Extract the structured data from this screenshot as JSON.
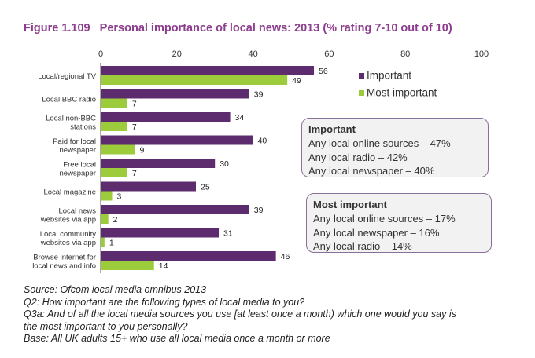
{
  "title": {
    "number": "Figure 1.109",
    "text": "Personal importance of local news: 2013 (% rating 7-10 out of 10)"
  },
  "colors": {
    "important": "#5c2c6e",
    "most_important": "#9ccb3b",
    "title": "#8c3d8e"
  },
  "chart_data": {
    "type": "bar",
    "orientation": "horizontal",
    "xlim": [
      0,
      100
    ],
    "xticks": [
      "0",
      "20",
      "40",
      "60",
      "80",
      "100"
    ],
    "categories": [
      [
        "Local/regional TV"
      ],
      [
        "Local BBC radio"
      ],
      [
        "Local non-BBC",
        "stations"
      ],
      [
        "Paid for local",
        "newspaper"
      ],
      [
        "Free local",
        "newspaper"
      ],
      [
        "Local magazine"
      ],
      [
        "Local news",
        "websites via app"
      ],
      [
        "Local community",
        "websites via app"
      ],
      [
        "Browse internet for",
        "local news and info"
      ]
    ],
    "series": [
      {
        "name": "Important",
        "values": [
          56,
          39,
          34,
          40,
          30,
          25,
          39,
          31,
          46
        ]
      },
      {
        "name": "Most important",
        "values": [
          49,
          7,
          7,
          9,
          7,
          3,
          2,
          1,
          14
        ]
      }
    ],
    "legend_position": "right"
  },
  "boxes": {
    "important": {
      "heading": "Important",
      "lines": [
        "Any local online sources – 47%",
        "Any local radio – 42%",
        "Any local newspaper – 40%"
      ]
    },
    "most_important": {
      "heading": "Most important",
      "lines": [
        "Any local online sources – 17%",
        "Any local newspaper – 16%",
        "Any local radio – 14%"
      ]
    }
  },
  "notes": [
    "Source: Ofcom local media omnibus 2013",
    "Q2: How important are the following types of local media to you?",
    "Q3a: And of all the local media sources you use [at least once a month) which one would you say is",
    "the most important to you personally?",
    "Base: All UK adults 15+ who use all local media once a month or more"
  ]
}
